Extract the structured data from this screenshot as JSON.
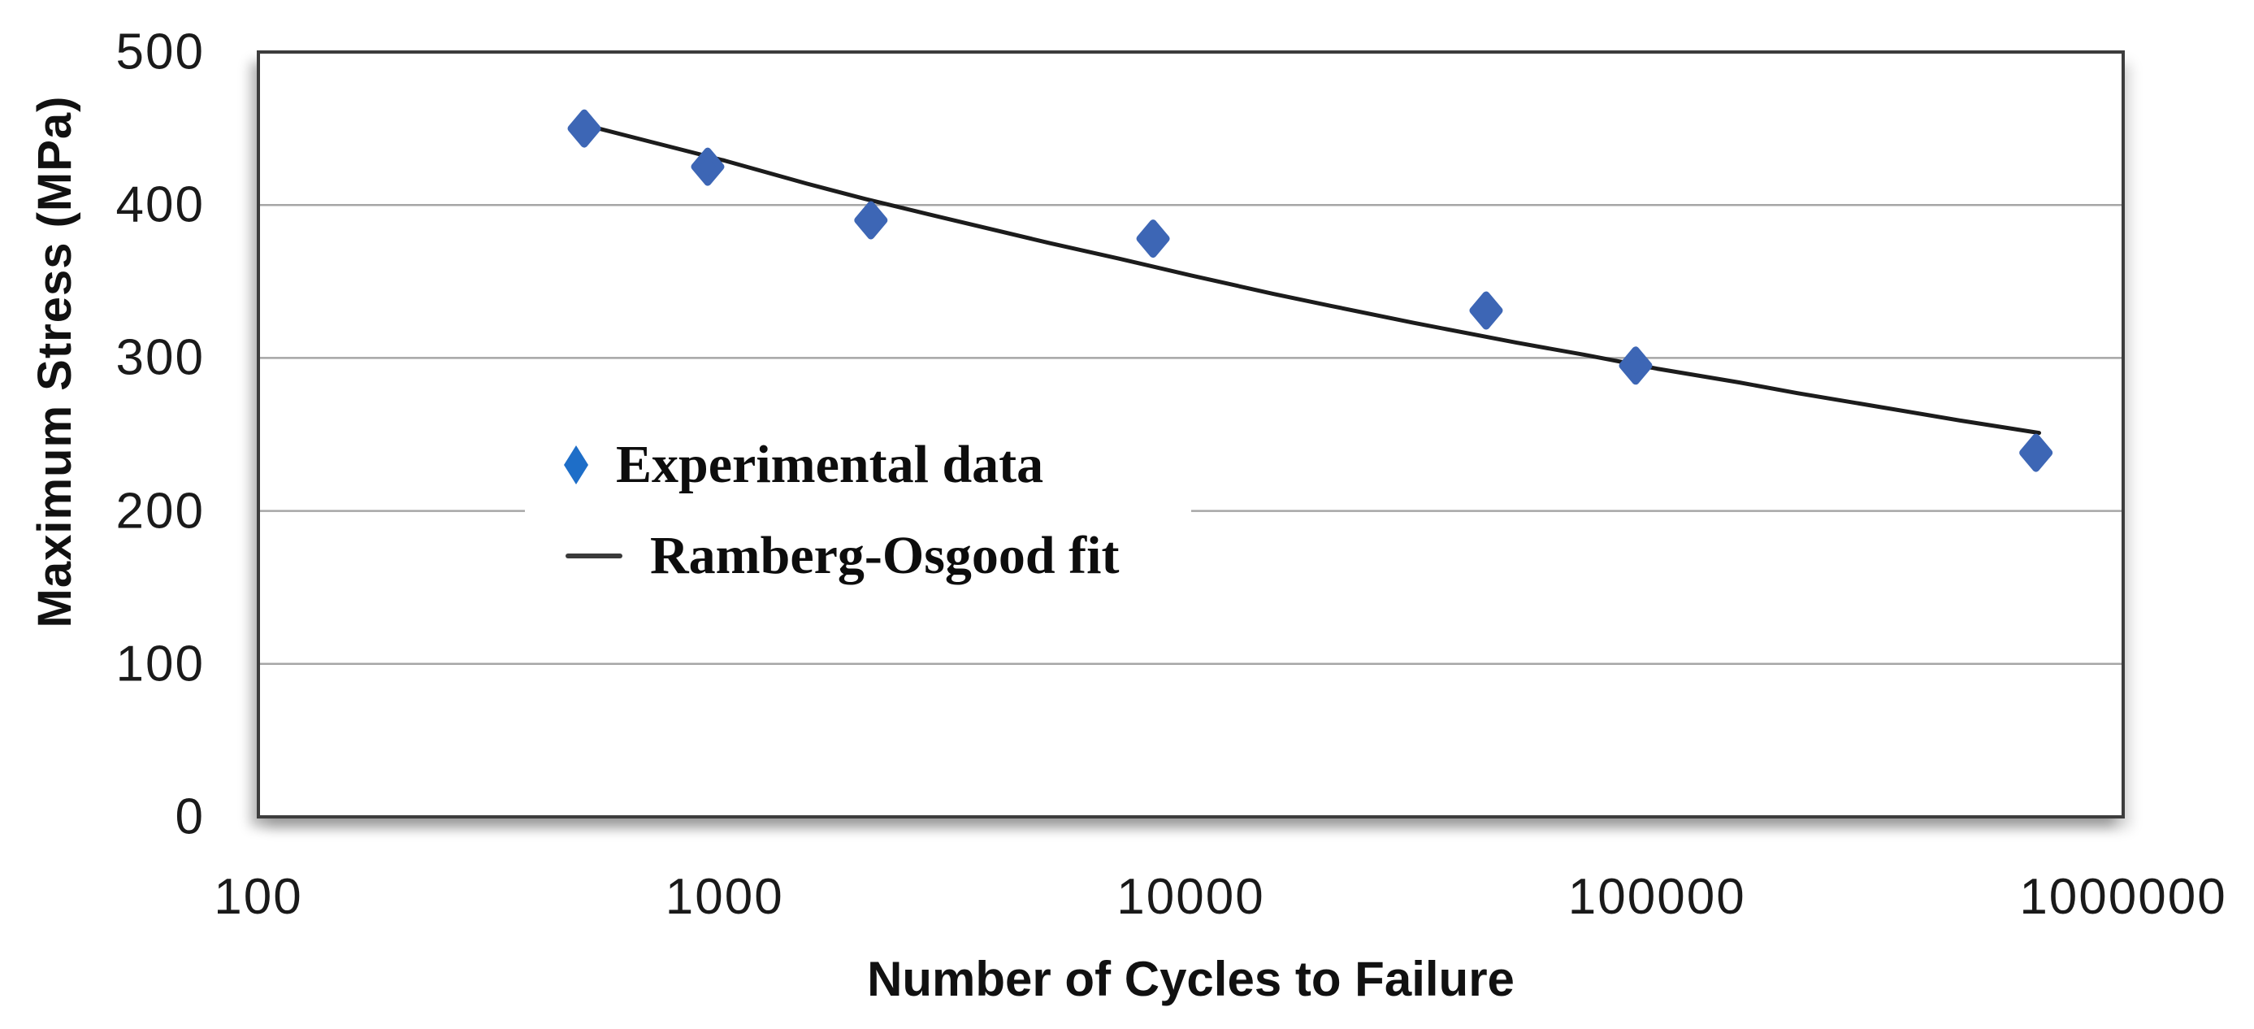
{
  "chart_data": {
    "type": "scatter",
    "title": "",
    "x_axis": {
      "title": "Number of Cycles to Failure",
      "scale": "log",
      "min": 100,
      "max": 1000000,
      "ticks": [
        100,
        1000,
        10000,
        100000,
        1000000
      ],
      "tick_labels": [
        "100",
        "1000",
        "10000",
        "100000",
        "1000000"
      ]
    },
    "y_axis": {
      "title": "Maximum Stress (MPa)",
      "scale": "linear",
      "min": 0,
      "max": 500,
      "ticks": [
        0,
        100,
        200,
        300,
        400,
        500
      ],
      "tick_labels": [
        "0",
        "100",
        "200",
        "300",
        "400",
        "500"
      ]
    },
    "gridlines": {
      "horizontal": true,
      "color": "#a6a6a6"
    },
    "frame_color": "#3d3d3d",
    "series": [
      {
        "name": "Experimental data",
        "type": "scatter",
        "marker": "diamond",
        "color": "#3d66b5",
        "points": [
          [
            500,
            450
          ],
          [
            920,
            425
          ],
          [
            2060,
            390
          ],
          [
            8300,
            378
          ],
          [
            43000,
            331
          ],
          [
            90000,
            295
          ],
          [
            650000,
            238
          ]
        ]
      },
      {
        "name": "Ramberg-Osgood fit",
        "type": "line",
        "color": "#1c1c1c",
        "points": [
          [
            506,
            452
          ],
          [
            700,
            441
          ],
          [
            1000,
            429
          ],
          [
            1500,
            414
          ],
          [
            2000,
            404
          ],
          [
            3000,
            391
          ],
          [
            5000,
            375
          ],
          [
            7000,
            365
          ],
          [
            10000,
            354
          ],
          [
            15000,
            342
          ],
          [
            20000,
            334
          ],
          [
            30000,
            323
          ],
          [
            50000,
            310
          ],
          [
            70000,
            302
          ],
          [
            100000,
            293
          ],
          [
            150000,
            284
          ],
          [
            200000,
            277
          ],
          [
            300000,
            268
          ],
          [
            450000,
            259
          ],
          [
            660000,
            251
          ]
        ]
      }
    ],
    "legend": {
      "position": "inside-left",
      "items": [
        {
          "label": "Experimental data",
          "marker": "diamond",
          "color": "#1e6ec8"
        },
        {
          "label": "Ramberg-Osgood fit",
          "marker": "line",
          "color": "#3a3a3a"
        }
      ]
    }
  }
}
